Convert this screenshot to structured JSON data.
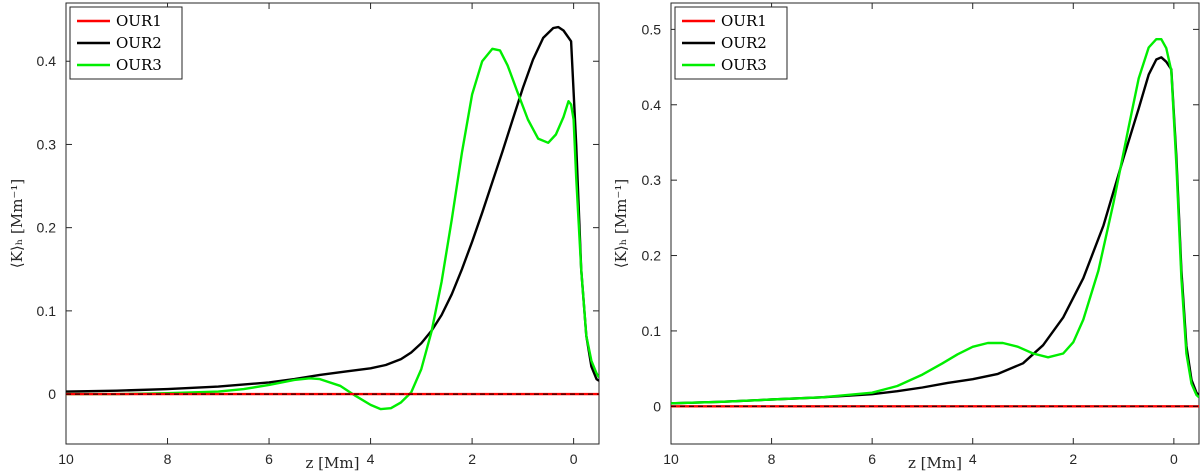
{
  "chart_data": [
    {
      "type": "line",
      "xlabel": "z [Mm]",
      "ylabel": "⟨K⟩ₕ [Mm⁻¹]",
      "xlim": [
        10,
        -0.5
      ],
      "ylim": [
        -0.06,
        0.47
      ],
      "xticks": [
        10,
        8,
        6,
        4,
        2,
        0
      ],
      "yticks": [
        0,
        0.1,
        0.2,
        0.3,
        0.4
      ],
      "ytick_labels": [
        "0",
        "0.1",
        "0.2",
        "0.3",
        "0.4"
      ],
      "legend": "top-left",
      "series": [
        {
          "name": "OUR1",
          "color": "#ff0000",
          "x": [
            10,
            8,
            6,
            4,
            2,
            0,
            -0.5
          ],
          "y": [
            0,
            0,
            0,
            0,
            0,
            0,
            0
          ]
        },
        {
          "name": "OUR2",
          "color": "#000000",
          "x": [
            10,
            9,
            8,
            7,
            6,
            5.5,
            5,
            4.5,
            4,
            3.7,
            3.4,
            3.2,
            3.0,
            2.8,
            2.6,
            2.4,
            2.2,
            2.0,
            1.8,
            1.6,
            1.4,
            1.2,
            1.0,
            0.8,
            0.6,
            0.4,
            0.3,
            0.2,
            0.05,
            -0.05,
            -0.15,
            -0.25,
            -0.35,
            -0.45,
            -0.5
          ],
          "y": [
            0.003,
            0.004,
            0.006,
            0.009,
            0.014,
            0.018,
            0.023,
            0.027,
            0.031,
            0.035,
            0.042,
            0.05,
            0.061,
            0.076,
            0.095,
            0.12,
            0.15,
            0.183,
            0.218,
            0.255,
            0.292,
            0.33,
            0.368,
            0.402,
            0.428,
            0.44,
            0.441,
            0.437,
            0.424,
            0.3,
            0.15,
            0.07,
            0.033,
            0.018,
            0.016
          ]
        },
        {
          "name": "OUR3",
          "color": "#00ee00",
          "x": [
            10,
            9,
            8,
            7,
            6.5,
            6,
            5.5,
            5.2,
            5,
            4.6,
            4.3,
            4.0,
            3.8,
            3.6,
            3.4,
            3.2,
            3.0,
            2.8,
            2.6,
            2.4,
            2.2,
            2.0,
            1.8,
            1.6,
            1.45,
            1.3,
            1.1,
            0.9,
            0.7,
            0.5,
            0.35,
            0.2,
            0.1,
            0.05,
            0.0,
            -0.05,
            -0.15,
            -0.25,
            -0.35,
            -0.45,
            -0.5
          ],
          "y": [
            0.0,
            0.0,
            0.001,
            0.003,
            0.006,
            0.011,
            0.017,
            0.019,
            0.018,
            0.01,
            -0.002,
            -0.013,
            -0.018,
            -0.017,
            -0.01,
            0.002,
            0.03,
            0.075,
            0.135,
            0.21,
            0.29,
            0.36,
            0.4,
            0.415,
            0.413,
            0.395,
            0.362,
            0.33,
            0.307,
            0.302,
            0.312,
            0.333,
            0.352,
            0.348,
            0.33,
            0.26,
            0.15,
            0.07,
            0.04,
            0.025,
            0.02
          ]
        }
      ]
    },
    {
      "type": "line",
      "xlabel": "z [Mm]",
      "ylabel": "⟨K⟩ₕ [Mm⁻¹]",
      "xlim": [
        10,
        -0.5
      ],
      "ylim": [
        -0.05,
        0.535
      ],
      "xticks": [
        10,
        8,
        6,
        4,
        2,
        0
      ],
      "yticks": [
        0,
        0.1,
        0.2,
        0.3,
        0.4,
        0.5
      ],
      "ytick_labels": [
        "0",
        "0.1",
        "0.2",
        "0.3",
        "0.4",
        "0.5"
      ],
      "legend": "top-left",
      "series": [
        {
          "name": "OUR1",
          "color": "#ff0000",
          "x": [
            10,
            8,
            6,
            4,
            2,
            0,
            -0.5
          ],
          "y": [
            0,
            0,
            0,
            0,
            0,
            0,
            0
          ]
        },
        {
          "name": "OUR2",
          "color": "#000000",
          "x": [
            10,
            9,
            8,
            7,
            6,
            5.5,
            5,
            4.5,
            4,
            3.5,
            3.0,
            2.6,
            2.2,
            1.8,
            1.4,
            1.0,
            0.7,
            0.5,
            0.35,
            0.25,
            0.15,
            0.05,
            -0.05,
            -0.15,
            -0.25,
            -0.35,
            -0.45,
            -0.5
          ],
          "y": [
            0.004,
            0.006,
            0.009,
            0.012,
            0.016,
            0.02,
            0.025,
            0.031,
            0.036,
            0.043,
            0.057,
            0.081,
            0.118,
            0.17,
            0.24,
            0.33,
            0.395,
            0.44,
            0.46,
            0.463,
            0.457,
            0.447,
            0.33,
            0.18,
            0.08,
            0.035,
            0.018,
            0.015
          ]
        },
        {
          "name": "OUR3",
          "color": "#00ee00",
          "x": [
            10,
            9,
            8,
            7,
            6,
            5.5,
            5,
            4.6,
            4.3,
            4.0,
            3.7,
            3.4,
            3.1,
            2.8,
            2.5,
            2.2,
            2.0,
            1.8,
            1.5,
            1.2,
            0.9,
            0.7,
            0.5,
            0.35,
            0.25,
            0.15,
            0.05,
            -0.05,
            -0.15,
            -0.25,
            -0.35,
            -0.45,
            -0.5
          ],
          "y": [
            0.004,
            0.006,
            0.009,
            0.012,
            0.018,
            0.027,
            0.042,
            0.057,
            0.069,
            0.079,
            0.084,
            0.084,
            0.079,
            0.07,
            0.065,
            0.07,
            0.085,
            0.115,
            0.18,
            0.27,
            0.37,
            0.435,
            0.476,
            0.487,
            0.487,
            0.475,
            0.445,
            0.32,
            0.17,
            0.07,
            0.03,
            0.015,
            0.012
          ]
        }
      ]
    }
  ]
}
